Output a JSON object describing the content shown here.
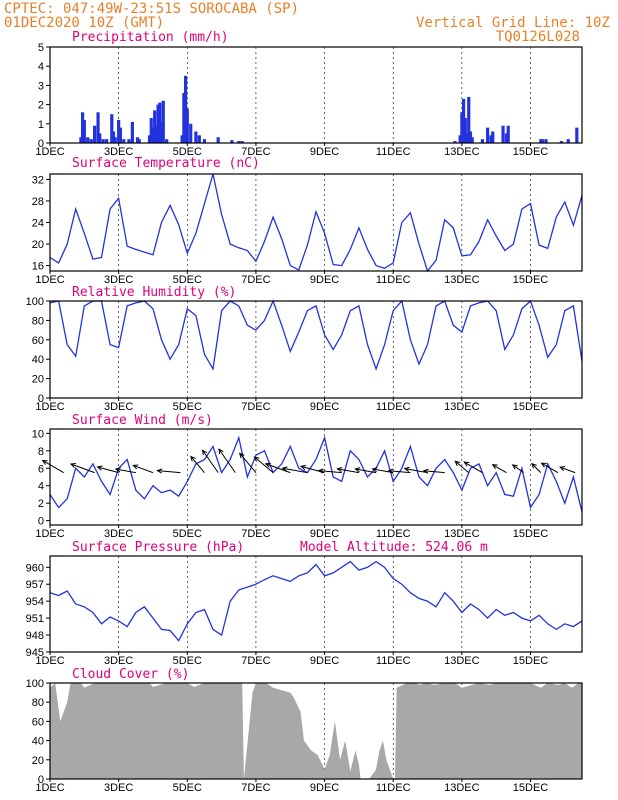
{
  "header": {
    "line1": "CPTEC:  047:49W-23:51S  SOROCABA (SP)",
    "line2": "01DEC2020 10Z (GMT)",
    "grid_note": "Vertical Grid Line: 10Z",
    "run_code": "TQ0126L028"
  },
  "colors": {
    "header": "#e8802a",
    "panel_title": "#e0007a",
    "series": "#2233dd",
    "cloud_fill": "#a8a8a8",
    "arrows": "#000000"
  },
  "x_axis": {
    "tick_labels": [
      "1DEC",
      "3DEC",
      "5DEC",
      "7DEC",
      "9DEC",
      "11DEC",
      "13DEC",
      "15DEC"
    ],
    "tick_days": [
      0,
      2,
      4,
      6,
      8,
      10,
      12,
      14
    ],
    "range_days": [
      0,
      15.5
    ]
  },
  "chart_data": [
    {
      "type": "bar",
      "title": "Precipitation (mm/h)",
      "ylim": [
        0,
        5
      ],
      "yticks": [
        0,
        1,
        2,
        3,
        4,
        5
      ],
      "x_days": [
        0.9,
        0.95,
        1.0,
        1.1,
        1.2,
        1.3,
        1.4,
        1.45,
        1.55,
        1.65,
        1.8,
        1.85,
        1.9,
        2.0,
        2.05,
        2.15,
        2.3,
        2.4,
        2.55,
        2.6,
        2.9,
        2.95,
        3.0,
        3.05,
        3.1,
        3.15,
        3.2,
        3.25,
        3.3,
        3.4,
        3.85,
        3.9,
        3.95,
        4.0,
        4.1,
        4.25,
        4.35,
        4.5,
        4.9,
        5.3,
        5.5,
        5.6,
        11.8,
        11.95,
        12.0,
        12.05,
        12.1,
        12.15,
        12.2,
        12.25,
        12.3,
        12.6,
        12.75,
        12.85,
        12.9,
        13.2,
        13.3,
        13.35,
        14.3,
        14.35,
        14.45,
        14.9,
        15.1,
        15.35
      ],
      "values": [
        0.3,
        1.6,
        1.2,
        0.3,
        0.2,
        0.9,
        1.6,
        0.5,
        0.2,
        0.2,
        1.5,
        0.6,
        0.3,
        1.2,
        0.8,
        0.2,
        0.2,
        1.1,
        0.3,
        0.2,
        0.4,
        1.3,
        0.8,
        1.7,
        0.9,
        2.0,
        2.1,
        1.1,
        2.2,
        0.2,
        0.4,
        2.6,
        3.5,
        1.8,
        1.0,
        0.6,
        0.4,
        0.2,
        0.3,
        0.15,
        0.1,
        0.1,
        0.1,
        0.4,
        1.6,
        2.3,
        1.3,
        0.5,
        2.4,
        0.6,
        0.3,
        0.2,
        0.8,
        0.4,
        0.6,
        0.9,
        0.5,
        0.9,
        0.2,
        0.2,
        0.2,
        0.1,
        0.2,
        0.8
      ]
    },
    {
      "type": "line",
      "title": "Surface Temperature (nC)",
      "ylim": [
        15,
        33
      ],
      "yticks": [
        16,
        20,
        24,
        28,
        32
      ],
      "series": [
        {
          "x": [
            0,
            0.25,
            0.5,
            0.75,
            1.0,
            1.25,
            1.5,
            1.75,
            2.0,
            2.25,
            2.5,
            2.75,
            3.0,
            3.25,
            3.5,
            3.75,
            4.0,
            4.25,
            4.5,
            4.75,
            5.0,
            5.25,
            5.5,
            5.75,
            6.0,
            6.25,
            6.5,
            6.75,
            7.0,
            7.25,
            7.5,
            7.75,
            8.0,
            8.25,
            8.5,
            8.75,
            9.0,
            9.25,
            9.5,
            9.75,
            10.0,
            10.25,
            10.5,
            10.75,
            11.0,
            11.25,
            11.5,
            11.75,
            12.0,
            12.25,
            12.5,
            12.75,
            13.0,
            13.25,
            13.5,
            13.75,
            14.0,
            14.25,
            14.5,
            14.75,
            15.0,
            15.25,
            15.5
          ],
          "values": [
            17.5,
            16.5,
            20.0,
            26.5,
            22.0,
            17.2,
            17.5,
            26.5,
            28.5,
            19.6,
            19.0,
            18.5,
            18.0,
            24.0,
            27.2,
            23.6,
            18.3,
            22.0,
            27.5,
            33.0,
            25.5,
            20.0,
            19.3,
            18.8,
            16.8,
            20.5,
            25.0,
            21.0,
            16.0,
            15.2,
            19.8,
            26.0,
            22.0,
            16.2,
            16.0,
            19.0,
            23.0,
            19.0,
            16.0,
            15.5,
            16.5,
            24.0,
            25.8,
            20.0,
            15.0,
            17.0,
            24.5,
            23.0,
            17.8,
            18.0,
            20.5,
            24.5,
            21.5,
            18.8,
            20.0,
            26.5,
            27.5,
            19.8,
            19.2,
            25.0,
            27.8,
            23.5,
            29.0
          ]
        }
      ]
    },
    {
      "type": "line",
      "title": "Relative Humidity (%)",
      "ylim": [
        0,
        100
      ],
      "yticks": [
        0,
        20,
        40,
        60,
        80,
        100
      ],
      "series": [
        {
          "x": [
            0,
            0.25,
            0.5,
            0.75,
            1.0,
            1.25,
            1.5,
            1.75,
            2.0,
            2.25,
            2.5,
            2.75,
            3.0,
            3.25,
            3.5,
            3.75,
            4.0,
            4.25,
            4.5,
            4.75,
            5.0,
            5.25,
            5.5,
            5.75,
            6.0,
            6.25,
            6.5,
            6.75,
            7.0,
            7.25,
            7.5,
            7.75,
            8.0,
            8.25,
            8.5,
            8.75,
            9.0,
            9.25,
            9.5,
            9.75,
            10.0,
            10.25,
            10.5,
            10.75,
            11.0,
            11.25,
            11.5,
            11.75,
            12.0,
            12.25,
            12.5,
            12.75,
            13.0,
            13.25,
            13.5,
            13.75,
            14.0,
            14.25,
            14.5,
            14.75,
            15.0,
            15.25,
            15.5
          ],
          "values": [
            98,
            100,
            55,
            43,
            95,
            100,
            100,
            55,
            52,
            95,
            98,
            100,
            92,
            60,
            40,
            55,
            92,
            85,
            45,
            30,
            90,
            100,
            95,
            75,
            70,
            80,
            100,
            75,
            48,
            68,
            90,
            95,
            65,
            50,
            65,
            90,
            95,
            55,
            30,
            55,
            90,
            100,
            60,
            35,
            55,
            95,
            100,
            75,
            68,
            95,
            98,
            100,
            90,
            50,
            65,
            92,
            100,
            75,
            42,
            55,
            90,
            95,
            38
          ]
        }
      ]
    },
    {
      "type": "line",
      "title": "Surface Wind (m/s)",
      "ylim": [
        -0.5,
        10.5
      ],
      "yticks": [
        0,
        2,
        4,
        6,
        8,
        10
      ],
      "series": [
        {
          "x": [
            0,
            0.25,
            0.5,
            0.75,
            1.0,
            1.25,
            1.5,
            1.75,
            2.0,
            2.25,
            2.5,
            2.75,
            3.0,
            3.25,
            3.5,
            3.75,
            4.0,
            4.25,
            4.5,
            4.75,
            5.0,
            5.25,
            5.5,
            5.75,
            6.0,
            6.25,
            6.5,
            6.75,
            7.0,
            7.25,
            7.5,
            7.75,
            8.0,
            8.25,
            8.5,
            8.75,
            9.0,
            9.25,
            9.5,
            9.75,
            10.0,
            10.25,
            10.5,
            10.75,
            11.0,
            11.25,
            11.5,
            11.75,
            12.0,
            12.25,
            12.5,
            12.75,
            13.0,
            13.25,
            13.5,
            13.75,
            14.0,
            14.25,
            14.5,
            14.75,
            15.0,
            15.25,
            15.5
          ],
          "values": [
            3.0,
            1.5,
            2.5,
            6.0,
            5.0,
            6.5,
            4.5,
            3.0,
            6.0,
            7.0,
            3.5,
            2.5,
            4.0,
            3.2,
            3.5,
            2.8,
            4.5,
            6.5,
            7.0,
            8.5,
            5.5,
            7.0,
            9.5,
            5.0,
            7.5,
            8.0,
            5.5,
            6.5,
            8.5,
            6.0,
            5.5,
            7.0,
            9.5,
            5.0,
            4.5,
            8.0,
            7.0,
            5.0,
            6.0,
            8.0,
            4.5,
            6.0,
            8.5,
            5.0,
            4.0,
            6.0,
            7.0,
            5.5,
            3.5,
            6.0,
            6.5,
            4.0,
            5.5,
            3.0,
            2.8,
            6.0,
            1.5,
            3.0,
            6.5,
            4.5,
            2.0,
            5.0,
            1.0
          ]
        }
      ],
      "arrows": {
        "x": [
          0.4,
          1.3,
          2.0,
          2.5,
          3.0,
          3.8,
          4.5,
          4.9,
          5.4,
          6.0,
          6.5,
          7.0,
          7.5,
          8.0,
          8.5,
          9.0,
          9.5,
          10.0,
          10.5,
          11.0,
          11.5,
          12.2,
          12.6,
          13.3,
          13.8,
          14.3,
          14.8,
          15.3
        ],
        "speed": [
          5.8,
          6.0,
          5.2,
          4.8,
          5.0,
          5.5,
          5.0,
          6.5,
          6.8,
          6.0,
          5.8,
          6.2,
          6.0,
          5.8,
          5.5,
          5.2,
          5.0,
          5.0,
          5.2,
          5.5,
          5.0,
          4.2,
          5.0,
          3.8,
          3.2,
          3.0,
          4.5,
          3.8
        ],
        "dir_deg": [
          150,
          160,
          165,
          170,
          160,
          175,
          130,
          125,
          125,
          130,
          140,
          160,
          170,
          165,
          175,
          170,
          170,
          170,
          175,
          170,
          175,
          140,
          150,
          150,
          145,
          135,
          150,
          160
        ]
      }
    },
    {
      "type": "line",
      "title": "Surface Pressure (hPa)",
      "annotation": "Model Altitude: 524.06  m",
      "ylim": [
        945,
        962
      ],
      "yticks": [
        945,
        948,
        951,
        954,
        957,
        960
      ],
      "series": [
        {
          "x": [
            0,
            0.25,
            0.5,
            0.75,
            1.0,
            1.25,
            1.5,
            1.75,
            2.0,
            2.25,
            2.5,
            2.75,
            3.0,
            3.25,
            3.5,
            3.75,
            4.0,
            4.25,
            4.5,
            4.75,
            5.0,
            5.25,
            5.5,
            5.75,
            6.0,
            6.25,
            6.5,
            6.75,
            7.0,
            7.25,
            7.5,
            7.75,
            8.0,
            8.25,
            8.5,
            8.75,
            9.0,
            9.25,
            9.5,
            9.75,
            10.0,
            10.25,
            10.5,
            10.75,
            11.0,
            11.25,
            11.5,
            11.75,
            12.0,
            12.25,
            12.5,
            12.75,
            13.0,
            13.25,
            13.5,
            13.75,
            14.0,
            14.25,
            14.5,
            14.75,
            15.0,
            15.25,
            15.5
          ],
          "values": [
            955.5,
            955.0,
            955.8,
            953.5,
            953.0,
            952.0,
            950.0,
            951.2,
            950.5,
            949.5,
            952.0,
            953.0,
            951.0,
            949.0,
            948.8,
            947.0,
            950.0,
            952.0,
            952.5,
            949.0,
            948.0,
            954.0,
            956.0,
            956.5,
            957.0,
            957.8,
            958.5,
            958.0,
            957.5,
            958.5,
            959.0,
            960.5,
            958.5,
            959.0,
            960.0,
            961.0,
            959.5,
            960.0,
            961.0,
            960.0,
            958.0,
            957.0,
            955.5,
            954.5,
            954.0,
            953.0,
            955.5,
            954.0,
            952.0,
            953.5,
            952.5,
            951.0,
            952.5,
            951.5,
            952.0,
            951.0,
            950.5,
            951.5,
            950.0,
            949.0,
            950.0,
            949.5,
            950.5
          ]
        }
      ]
    },
    {
      "type": "area",
      "title": "Cloud Cover (%)",
      "ylim": [
        0,
        100
      ],
      "yticks": [
        0,
        20,
        40,
        60,
        80,
        100
      ],
      "series": [
        {
          "x": [
            0,
            0.15,
            0.3,
            0.5,
            0.6,
            0.9,
            1.0,
            1.3,
            1.4,
            2.0,
            2.1,
            2.4,
            2.5,
            2.9,
            3.0,
            3.4,
            3.5,
            4.0,
            4.2,
            4.5,
            4.8,
            5.0,
            5.4,
            5.6,
            5.65,
            5.9,
            6.0,
            6.3,
            6.5,
            7.0,
            7.1,
            7.3,
            7.4,
            7.6,
            7.8,
            8.0,
            8.15,
            8.3,
            8.45,
            8.6,
            8.75,
            8.9,
            9.0,
            9.05,
            9.2,
            9.3,
            9.4,
            9.5,
            9.6,
            9.7,
            9.8,
            9.9,
            10.0,
            10.05,
            10.1,
            10.4,
            10.5,
            10.6,
            10.8,
            10.9,
            11.0,
            11.2,
            11.5,
            11.8,
            12.0,
            12.5,
            12.8,
            13.0,
            13.2,
            13.5,
            14.0,
            14.3,
            14.5,
            14.8,
            15.0,
            15.2,
            15.4,
            15.5
          ],
          "values": [
            95,
            100,
            60,
            80,
            100,
            100,
            95,
            100,
            100,
            100,
            100,
            100,
            100,
            100,
            96,
            100,
            100,
            100,
            96,
            100,
            100,
            100,
            100,
            100,
            0,
            90,
            100,
            100,
            95,
            90,
            85,
            70,
            40,
            30,
            25,
            10,
            25,
            60,
            20,
            40,
            8,
            30,
            15,
            0,
            0,
            0,
            5,
            10,
            30,
            40,
            20,
            10,
            0,
            0,
            95,
            100,
            100,
            100,
            98,
            100,
            100,
            98,
            100,
            100,
            95,
            100,
            98,
            100,
            100,
            100,
            100,
            95,
            100,
            98,
            100,
            95,
            100,
            100
          ]
        }
      ]
    }
  ]
}
